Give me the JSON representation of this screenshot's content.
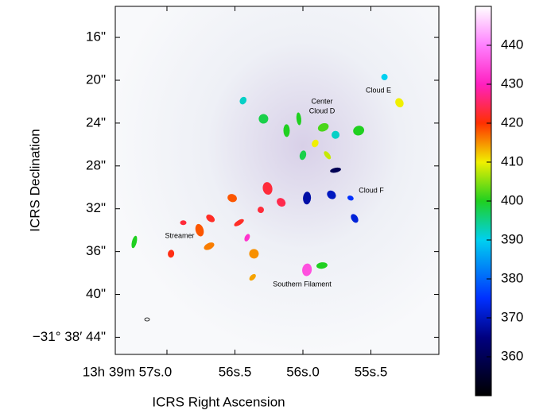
{
  "chart_data": {
    "type": "map",
    "xlabel": "ICRS Right Ascension",
    "ylabel": "ICRS  Declination",
    "xlim": [
      57.38,
      55.0
    ],
    "ylim": [
      13.1,
      45.6
    ],
    "xticks": [
      {
        "value": 57.0,
        "label": "13h 39m 57s.0"
      },
      {
        "value": 56.5,
        "label": "56s.5"
      },
      {
        "value": 56.0,
        "label": "56s.0"
      },
      {
        "value": 55.5,
        "label": "55s.5"
      }
    ],
    "yticks": [
      {
        "value": 16,
        "label": "16\""
      },
      {
        "value": 20,
        "label": "20\""
      },
      {
        "value": 24,
        "label": "24\""
      },
      {
        "value": 28,
        "label": "28\""
      },
      {
        "value": 32,
        "label": "32\""
      },
      {
        "value": 36,
        "label": "36\""
      },
      {
        "value": 40,
        "label": "40\""
      },
      {
        "value": 44,
        "label": "−31° 38′ 44\""
      }
    ],
    "clim": [
      350,
      450
    ],
    "cticks": [
      360,
      370,
      380,
      390,
      400,
      410,
      420,
      430,
      440
    ],
    "annotations": [
      "Center",
      "Cloud D",
      "Cloud E",
      "Cloud F",
      "Streamer",
      "Southern Filament"
    ],
    "x": [
      56.88,
      56.68,
      56.76,
      56.52,
      56.47,
      56.31,
      56.16,
      56.26,
      56.41,
      56.69,
      56.97,
      56.36,
      56.03,
      55.91,
      55.85,
      56.0,
      55.82,
      56.12,
      55.76,
      55.59,
      55.65,
      55.62,
      55.97,
      55.79,
      55.76,
      55.4,
      55.29,
      55.97,
      56.37,
      55.86,
      56.44,
      56.29,
      57.24
    ],
    "y": [
      33.3,
      32.9,
      34.0,
      31.0,
      33.3,
      32.1,
      31.4,
      30.1,
      34.7,
      35.5,
      36.2,
      36.2,
      23.6,
      25.9,
      24.4,
      27.0,
      27.0,
      24.7,
      25.1,
      24.7,
      31.0,
      32.9,
      31.0,
      30.7,
      28.4,
      19.7,
      22.1,
      37.7,
      38.4,
      37.3,
      21.9,
      23.6,
      35.1
    ],
    "values": [
      423,
      422,
      418,
      418,
      422,
      423,
      424,
      423,
      432,
      416,
      421,
      415,
      400,
      410,
      402,
      398,
      408,
      400,
      392,
      400,
      375,
      372,
      368,
      370,
      360,
      390,
      410,
      435,
      414,
      400,
      392,
      398,
      400
    ]
  }
}
